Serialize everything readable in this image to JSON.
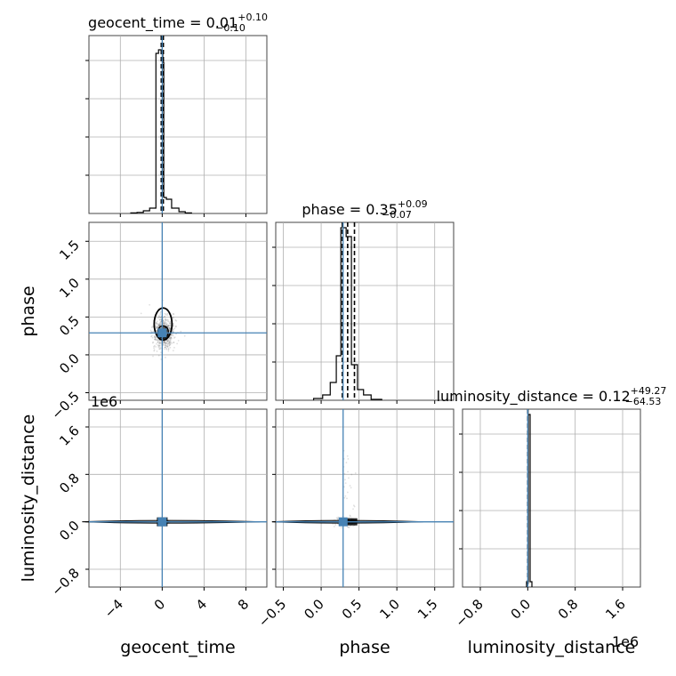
{
  "chart_data": {
    "type": "corner",
    "parameters": [
      "geocent_time",
      "phase",
      "luminosity_distance"
    ],
    "titles": {
      "geocent_time": {
        "name": "geocent_time",
        "median": "0.01",
        "plus": "+0.10",
        "minus": "−0.10"
      },
      "phase": {
        "name": "phase",
        "median": "0.35",
        "plus": "+0.09",
        "minus": "−0.07"
      },
      "luminosity_distance": {
        "name": "luminosity_distance",
        "median": "0.12",
        "plus": "+49.27",
        "minus": "−64.53"
      }
    },
    "axis_labels": {
      "geocent_time": "geocent_time",
      "phase": "phase",
      "luminosity_distance": "luminosity_distance"
    },
    "ranges": {
      "geocent_time": [
        -7,
        10
      ],
      "phase": [
        -0.6,
        1.75
      ],
      "luminosity_distance": [
        -1100000,
        1900000
      ]
    },
    "ticks": {
      "geocent_time": {
        "values": [
          -4,
          0,
          4,
          8
        ],
        "labels": [
          "−4",
          "0",
          "4",
          "8"
        ]
      },
      "phase": {
        "values": [
          -0.5,
          0.0,
          0.5,
          1.0,
          1.5
        ],
        "labels": [
          "−0.5",
          "0.0",
          "0.5",
          "1.0",
          "1.5"
        ]
      },
      "luminosity_distance": {
        "values": [
          -800000,
          0,
          800000,
          1600000
        ],
        "labels": [
          "−0.8",
          "0.0",
          "0.8",
          "1.6"
        ]
      }
    },
    "offset_text": "1e6",
    "truths": {
      "geocent_time": 0.0,
      "phase": 0.29,
      "luminosity_distance": 0
    },
    "quantiles": {
      "geocent_time": [
        -0.09,
        0.01,
        0.11
      ],
      "phase": [
        0.28,
        0.35,
        0.44
      ],
      "luminosity_distance": [
        -64.53,
        0.12,
        49.39
      ]
    },
    "histograms": {
      "geocent_time": {
        "edges": [
          -3.0,
          -2.4,
          -1.8,
          -1.2,
          -0.6,
          -0.35,
          -0.1,
          0.05,
          0.15,
          0.4,
          0.9,
          1.6,
          2.2,
          2.8
        ],
        "counts": [
          0.003,
          0.006,
          0.015,
          0.03,
          0.9,
          0.92,
          0.9,
          0.85,
          0.09,
          0.08,
          0.03,
          0.01,
          0.003
        ]
      },
      "phase": {
        "edges": [
          -0.1,
          0.02,
          0.12,
          0.2,
          0.26,
          0.33,
          0.4,
          0.48,
          0.56,
          0.66,
          0.8
        ],
        "counts": [
          0.01,
          0.03,
          0.1,
          0.25,
          0.97,
          0.92,
          0.2,
          0.06,
          0.03,
          0.005
        ]
      },
      "luminosity_distance": {
        "edges": [
          -20000,
          10000,
          40000,
          70000
        ],
        "counts": [
          0.03,
          0.97,
          0.03
        ]
      }
    },
    "grid": true
  }
}
